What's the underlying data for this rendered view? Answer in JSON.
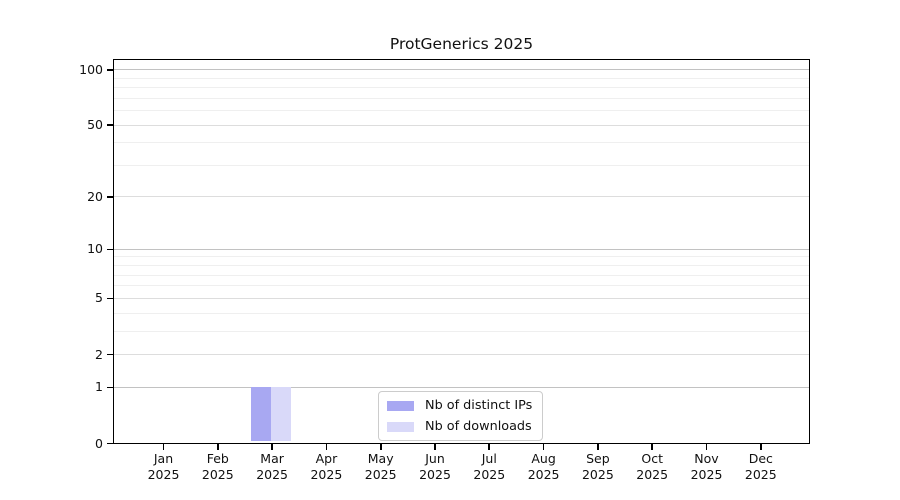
{
  "chart_data": {
    "type": "bar",
    "title": "ProtGenerics 2025",
    "categories": [
      "Jan",
      "Feb",
      "Mar",
      "Apr",
      "May",
      "Jun",
      "Jul",
      "Aug",
      "Sep",
      "Oct",
      "Nov",
      "Dec"
    ],
    "category_year": "2025",
    "series": [
      {
        "name": "Nb of distinct IPs",
        "color": "#a8a8f2",
        "values": [
          0,
          0,
          1,
          0,
          0,
          0,
          0,
          0,
          0,
          0,
          0,
          0
        ]
      },
      {
        "name": "Nb of downloads",
        "color": "#d9d9f9",
        "values": [
          0,
          0,
          1,
          0,
          0,
          0,
          0,
          0,
          0,
          0,
          0,
          0
        ]
      }
    ],
    "xlabel": "",
    "ylabel": "",
    "y_axis": {
      "scale": "log1p",
      "tick_values": [
        100,
        50,
        20,
        10,
        5,
        2,
        1,
        0
      ],
      "decade_gridlines": [
        1,
        10,
        100
      ],
      "labeled_gridlines": [
        2,
        5,
        20,
        50
      ],
      "minor_gridlines": [
        3,
        4,
        6,
        7,
        8,
        9,
        30,
        40,
        60,
        70,
        80,
        90
      ],
      "range": [
        0,
        120
      ]
    },
    "grid": true,
    "legend_position": "bottom-center"
  },
  "colors": {
    "decade_grid": "#c2c2c2",
    "labeled_grid": "#dddddd",
    "minor_grid": "#efefef",
    "spine": "#000000",
    "legend_border": "#cccccc",
    "text": "#111111",
    "background": "#ffffff"
  }
}
